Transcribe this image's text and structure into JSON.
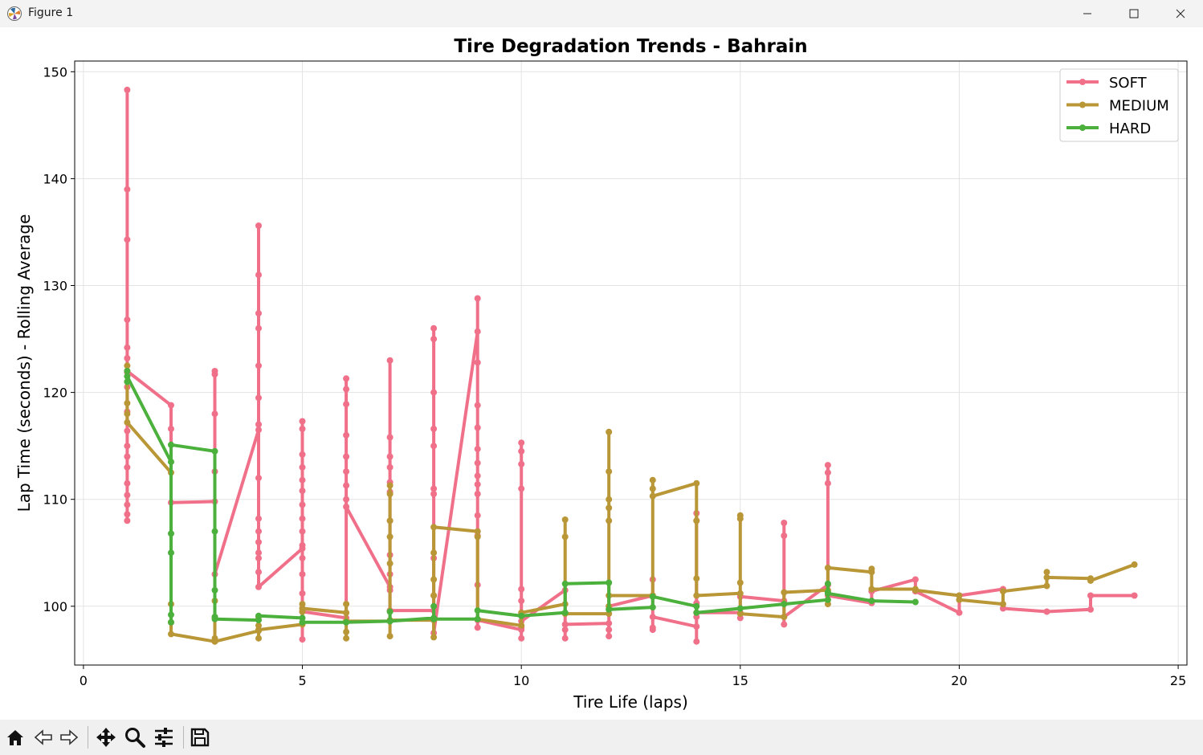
{
  "window": {
    "title": "Figure 1",
    "controls": [
      "minimize-icon",
      "maximize-icon",
      "close-icon"
    ]
  },
  "toolbar": {
    "tools": [
      "home-icon",
      "back-icon",
      "forward-icon",
      "pan-icon",
      "zoom-icon",
      "configure-subplots-icon",
      "save-icon"
    ]
  },
  "colors": {
    "soft": "#f0708a",
    "medium": "#b99636",
    "hard": "#4bb03c"
  },
  "chart_data": {
    "type": "line",
    "title": "Tire Degradation Trends - Bahrain",
    "xlabel": "Tire Life (laps)",
    "ylabel": "Lap Time (seconds) - Rolling Average",
    "xlim": [
      -0.2,
      25.2
    ],
    "ylim": [
      94.5,
      151.0
    ],
    "xticks": [
      0,
      5,
      10,
      15,
      20,
      25
    ],
    "yticks": [
      100,
      110,
      120,
      130,
      140,
      150
    ],
    "grid": true,
    "legend": {
      "position": "top-right",
      "entries": [
        "SOFT",
        "MEDIUM",
        "HARD"
      ]
    },
    "series": [
      {
        "name": "SOFT",
        "color": "#f0708a",
        "points": [
          [
            1,
            148.3
          ],
          [
            1,
            139
          ],
          [
            1,
            134.3
          ],
          [
            1,
            126.8
          ],
          [
            1,
            124.2
          ],
          [
            1,
            123.2
          ],
          [
            1,
            121.9
          ],
          [
            1,
            120.5
          ],
          [
            1,
            118.2
          ],
          [
            1,
            116.4
          ],
          [
            1,
            115
          ],
          [
            1,
            114
          ],
          [
            1,
            113
          ],
          [
            1,
            111.5
          ],
          [
            1,
            110.4
          ],
          [
            1,
            109.5
          ],
          [
            1,
            108.6
          ],
          [
            1,
            108
          ],
          [
            1,
            122
          ],
          [
            2,
            118.8
          ],
          [
            2,
            116.6
          ],
          [
            2,
            109.7
          ],
          [
            3,
            109.8
          ],
          [
            3,
            122
          ],
          [
            3,
            121.7
          ],
          [
            3,
            118
          ],
          [
            3,
            112.6
          ],
          [
            3,
            103
          ],
          [
            4,
            116.5
          ],
          [
            4,
            135.6
          ],
          [
            4,
            131
          ],
          [
            4,
            127.4
          ],
          [
            4,
            126
          ],
          [
            4,
            122.5
          ],
          [
            4,
            119.5
          ],
          [
            4,
            117
          ],
          [
            4,
            112
          ],
          [
            4,
            108.2
          ],
          [
            4,
            107
          ],
          [
            4,
            106
          ],
          [
            4,
            105
          ],
          [
            4,
            104.5
          ],
          [
            4,
            103.2
          ],
          [
            4,
            101.8
          ],
          [
            5,
            105.4
          ],
          [
            5,
            117.3
          ],
          [
            5,
            116.6
          ],
          [
            5,
            114.2
          ],
          [
            5,
            113
          ],
          [
            5,
            111.8
          ],
          [
            5,
            110.8
          ],
          [
            5,
            109.5
          ],
          [
            5,
            108.2
          ],
          [
            5,
            107
          ],
          [
            5,
            105.7
          ],
          [
            5,
            104.5
          ],
          [
            5,
            103
          ],
          [
            5,
            101.2
          ],
          [
            5,
            99.5
          ],
          [
            5,
            96.9
          ],
          [
            5,
            99.5
          ],
          [
            6,
            98.9
          ],
          [
            6,
            121.3
          ],
          [
            6,
            120.3
          ],
          [
            6,
            118.9
          ],
          [
            6,
            116
          ],
          [
            6,
            114
          ],
          [
            6,
            112.6
          ],
          [
            6,
            111.3
          ],
          [
            6,
            110
          ],
          [
            6,
            109.3
          ],
          [
            7,
            101.8
          ],
          [
            7,
            123
          ],
          [
            7,
            115.8
          ],
          [
            7,
            114
          ],
          [
            7,
            113
          ],
          [
            7,
            111.6
          ],
          [
            7,
            110.7
          ],
          [
            7,
            108
          ],
          [
            7,
            104.8
          ],
          [
            7,
            103
          ],
          [
            7,
            101.5
          ],
          [
            7,
            99.6
          ],
          [
            8,
            99.6
          ],
          [
            8,
            126
          ],
          [
            8,
            125
          ],
          [
            8,
            120
          ],
          [
            8,
            116.6
          ],
          [
            8,
            115
          ],
          [
            8,
            111
          ],
          [
            8,
            110.5
          ],
          [
            8,
            104.5
          ],
          [
            8,
            101
          ],
          [
            8,
            97.5
          ],
          [
            9,
            125.7
          ],
          [
            9,
            128.8
          ],
          [
            9,
            122.8
          ],
          [
            9,
            118.8
          ],
          [
            9,
            116.7
          ],
          [
            9,
            114.7
          ],
          [
            9,
            113.4
          ],
          [
            9,
            112.2
          ],
          [
            9,
            111.4
          ],
          [
            9,
            110.5
          ],
          [
            9,
            108.5
          ],
          [
            9,
            106.6
          ],
          [
            9,
            102
          ],
          [
            9,
            98
          ],
          [
            9,
            98.7
          ],
          [
            10,
            97.8
          ],
          [
            10,
            115.3
          ],
          [
            10,
            114.5
          ],
          [
            10,
            113.3
          ],
          [
            10,
            111
          ],
          [
            10,
            101.6
          ],
          [
            10,
            100.5
          ],
          [
            10,
            98
          ],
          [
            10,
            97
          ],
          [
            10,
            98.6
          ],
          [
            11,
            101.5
          ],
          [
            11,
            97.8
          ],
          [
            11,
            97
          ],
          [
            11,
            98.3
          ],
          [
            12,
            98.4
          ],
          [
            12,
            97.2
          ],
          [
            12,
            97.8
          ],
          [
            12,
            100
          ],
          [
            13,
            101
          ],
          [
            13,
            102.5
          ],
          [
            13,
            98
          ],
          [
            13,
            97.8
          ],
          [
            13,
            99
          ],
          [
            14,
            98.1
          ],
          [
            14,
            108.7
          ],
          [
            14,
            108
          ],
          [
            14,
            100.3
          ],
          [
            14,
            99
          ],
          [
            14,
            96.7
          ],
          [
            14,
            99.4
          ],
          [
            15,
            99.4
          ],
          [
            15,
            98.9
          ],
          [
            15,
            100.9
          ],
          [
            16,
            100.5
          ],
          [
            16,
            107.8
          ],
          [
            16,
            106.6
          ],
          [
            16,
            98.3
          ],
          [
            16,
            99
          ],
          [
            17,
            102
          ],
          [
            17,
            113.2
          ],
          [
            17,
            112.5
          ],
          [
            17,
            111.5
          ],
          [
            17,
            101
          ],
          [
            18,
            100.3
          ],
          [
            18,
            101.4
          ],
          [
            19,
            102.5
          ],
          [
            19,
            101.4
          ],
          [
            20,
            99.4
          ],
          [
            20,
            101
          ],
          [
            21,
            101.6
          ],
          [
            21,
            99.8
          ],
          [
            22,
            99.5
          ],
          [
            23,
            99.7
          ],
          [
            23,
            101
          ],
          [
            24,
            101
          ]
        ]
      },
      {
        "name": "MEDIUM",
        "color": "#b99636",
        "points": [
          [
            1,
            122.5
          ],
          [
            1,
            119
          ],
          [
            1,
            118
          ],
          [
            1,
            117.2
          ],
          [
            2,
            112.5
          ],
          [
            2,
            100.2
          ],
          [
            2,
            98.5
          ],
          [
            2,
            97.4
          ],
          [
            3,
            96.7
          ],
          [
            3,
            97
          ],
          [
            3,
            99
          ],
          [
            3,
            100.5
          ],
          [
            3,
            96.7
          ],
          [
            4,
            97.7
          ],
          [
            4,
            97
          ],
          [
            4,
            98.2
          ],
          [
            4,
            99
          ],
          [
            4,
            97.8
          ],
          [
            5,
            98.3
          ],
          [
            5,
            99.5
          ],
          [
            5,
            100.2
          ],
          [
            5,
            99.8
          ],
          [
            6,
            99.4
          ],
          [
            6,
            97
          ],
          [
            6,
            97.6
          ],
          [
            6,
            100.2
          ],
          [
            6,
            98.6
          ],
          [
            7,
            98.6
          ],
          [
            7,
            97.2
          ],
          [
            7,
            104
          ],
          [
            7,
            108
          ],
          [
            7,
            111.3
          ],
          [
            7,
            110.5
          ],
          [
            7,
            106.5
          ],
          [
            7,
            98.7
          ],
          [
            8,
            98.7
          ],
          [
            8,
            97.1
          ],
          [
            8,
            101
          ],
          [
            8,
            102.5
          ],
          [
            8,
            105
          ],
          [
            8,
            107.4
          ],
          [
            9,
            107
          ],
          [
            9,
            106.5
          ],
          [
            9,
            98.8
          ],
          [
            10,
            98.2
          ],
          [
            10,
            99.4
          ],
          [
            11,
            100.2
          ],
          [
            11,
            108.1
          ],
          [
            11,
            106.5
          ],
          [
            11,
            99.3
          ],
          [
            12,
            99.3
          ],
          [
            12,
            116.3
          ],
          [
            12,
            112.6
          ],
          [
            12,
            110
          ],
          [
            12,
            109.2
          ],
          [
            12,
            108
          ],
          [
            12,
            100
          ],
          [
            12,
            101
          ],
          [
            13,
            101
          ],
          [
            13,
            111.8
          ],
          [
            13,
            111
          ],
          [
            13,
            110.3
          ],
          [
            14,
            111.5
          ],
          [
            14,
            108
          ],
          [
            14,
            102.6
          ],
          [
            14,
            101
          ],
          [
            15,
            101.2
          ],
          [
            15,
            108.5
          ],
          [
            15,
            108.2
          ],
          [
            15,
            102.2
          ],
          [
            15,
            99.3
          ],
          [
            16,
            99
          ],
          [
            16,
            101.3
          ],
          [
            17,
            101.5
          ],
          [
            17,
            100.2
          ],
          [
            17,
            103.6
          ],
          [
            18,
            103.2
          ],
          [
            18,
            103.5
          ],
          [
            18,
            101.6
          ],
          [
            19,
            101.6
          ],
          [
            19,
            101.5
          ],
          [
            20,
            101
          ],
          [
            20,
            100.6
          ],
          [
            21,
            100.2
          ],
          [
            21,
            101.4
          ],
          [
            22,
            101.9
          ],
          [
            22,
            103.2
          ],
          [
            22,
            102.7
          ],
          [
            23,
            102.6
          ],
          [
            23,
            102.4
          ],
          [
            24,
            103.9
          ]
        ]
      },
      {
        "name": "HARD",
        "color": "#4bb03c",
        "points": [
          [
            1,
            122
          ],
          [
            1,
            121
          ],
          [
            1,
            121.5
          ],
          [
            2,
            113.5
          ],
          [
            2,
            106.8
          ],
          [
            2,
            105
          ],
          [
            2,
            99.2
          ],
          [
            2,
            98.5
          ],
          [
            2,
            115.1
          ],
          [
            3,
            114.5
          ],
          [
            3,
            107
          ],
          [
            3,
            101.5
          ],
          [
            3,
            99
          ],
          [
            3,
            98.8
          ],
          [
            4,
            98.7
          ],
          [
            4,
            99.1
          ],
          [
            5,
            98.9
          ],
          [
            5,
            98.5
          ],
          [
            6,
            98.5
          ],
          [
            7,
            98.6
          ],
          [
            7,
            99.5
          ],
          [
            7,
            98.6
          ],
          [
            8,
            98.9
          ],
          [
            8,
            100
          ],
          [
            8,
            98.8
          ],
          [
            9,
            98.8
          ],
          [
            9,
            99.6
          ],
          [
            10,
            99.1
          ],
          [
            11,
            99.4
          ],
          [
            11,
            102.1
          ],
          [
            12,
            102.2
          ],
          [
            12,
            99.7
          ],
          [
            13,
            99.9
          ],
          [
            13,
            100.9
          ],
          [
            14,
            100
          ],
          [
            14,
            99.4
          ],
          [
            15,
            99.8
          ],
          [
            16,
            100.2
          ],
          [
            17,
            100.6
          ],
          [
            17,
            101.3
          ],
          [
            17,
            102.1
          ],
          [
            17,
            101.2
          ],
          [
            18,
            100.5
          ],
          [
            19,
            100.4
          ]
        ]
      }
    ]
  }
}
